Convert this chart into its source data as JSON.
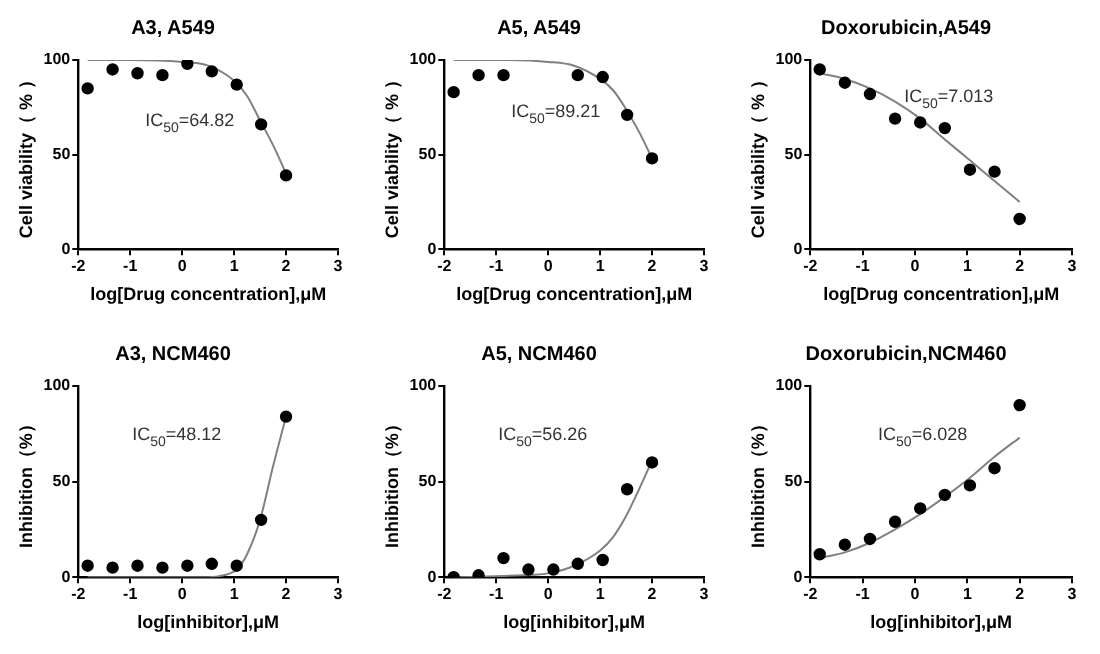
{
  "chart_data": [
    {
      "type": "scatter",
      "title": "A3, A549",
      "xlabel": "log[Drug concentration],μM",
      "ylabel": "Cell viability（ % ）",
      "annotations": [
        "IC$_{50}$=64.82"
      ],
      "xlim": [
        -2,
        3
      ],
      "xticks": [
        -2,
        -1,
        0,
        1,
        2,
        3
      ],
      "ylim": [
        0,
        100
      ],
      "yticks": [
        0,
        50,
        100
      ],
      "grid": false,
      "legend": false,
      "series": [
        {
          "type": "scatter",
          "marker": "circle",
          "color": "#000000",
          "x": [
            -1.82,
            -1.34,
            -0.86,
            -0.38,
            0.1,
            0.57,
            1.05,
            1.52,
            2
          ],
          "values": [
            85,
            95,
            93,
            92,
            98,
            94,
            87,
            66,
            39
          ]
        },
        {
          "type": "line",
          "marker": "none",
          "color": "#808080",
          "x": [
            -1.82,
            -1,
            0,
            0.5,
            1,
            1.25,
            1.5,
            1.75,
            2
          ],
          "values": [
            100,
            100,
            99,
            97,
            89,
            81,
            68,
            55,
            40
          ]
        }
      ]
    },
    {
      "type": "scatter",
      "title": "A5, A549",
      "xlabel": "log[Drug concentration],μM",
      "ylabel": "Cell viability（ % ）",
      "annotations": [
        "IC$_{50}$=89.21"
      ],
      "xlim": [
        -2,
        3
      ],
      "xticks": [
        -2,
        -1,
        0,
        1,
        2,
        3
      ],
      "ylim": [
        0,
        100
      ],
      "yticks": [
        0,
        50,
        100
      ],
      "grid": false,
      "legend": false,
      "series": [
        {
          "type": "scatter",
          "marker": "circle",
          "color": "#000000",
          "x": [
            -1.82,
            -1.34,
            -0.86,
            0.57,
            1.05,
            1.52,
            2
          ],
          "values": [
            83,
            92,
            92,
            92,
            91,
            71,
            48
          ]
        },
        {
          "type": "line",
          "marker": "none",
          "color": "#808080",
          "x": [
            -1.82,
            -1,
            0,
            0.5,
            1,
            1.25,
            1.5,
            1.75,
            2
          ],
          "values": [
            100,
            100,
            99,
            97,
            90,
            84,
            74,
            62,
            48
          ]
        }
      ]
    },
    {
      "type": "scatter",
      "title": "Doxorubicin,A549",
      "xlabel": "log[Drug concentration],μM",
      "ylabel": "Cell viability（ % ）",
      "annotations": [
        "IC$_{50}$=7.013"
      ],
      "xlim": [
        -2,
        3
      ],
      "xticks": [
        -2,
        -1,
        0,
        1,
        2,
        3
      ],
      "ylim": [
        0,
        100
      ],
      "yticks": [
        0,
        50,
        100
      ],
      "grid": false,
      "legend": false,
      "series": [
        {
          "type": "scatter",
          "marker": "circle",
          "color": "#000000",
          "x": [
            -1.82,
            -1.34,
            -0.86,
            -0.38,
            0.1,
            0.57,
            1.05,
            1.52,
            2
          ],
          "values": [
            95,
            88,
            82,
            69,
            67,
            64,
            42,
            41,
            16
          ]
        },
        {
          "type": "line",
          "marker": "none",
          "color": "#808080",
          "x": [
            -1.82,
            -1.34,
            -0.86,
            -0.38,
            0.1,
            0.57,
            1.05,
            1.52,
            2
          ],
          "values": [
            93,
            90,
            85,
            78,
            69,
            58,
            47,
            36,
            25
          ]
        }
      ]
    },
    {
      "type": "scatter",
      "title": "A3, NCM460",
      "xlabel": "log[inhibitor],μM",
      "ylabel": "Inhibition（%）",
      "annotations": [
        "IC$_{50}$=48.12"
      ],
      "xlim": [
        -2,
        3
      ],
      "xticks": [
        -2,
        -1,
        0,
        1,
        2,
        3
      ],
      "ylim": [
        0,
        100
      ],
      "yticks": [
        0,
        50,
        100
      ],
      "grid": false,
      "legend": false,
      "series": [
        {
          "type": "scatter",
          "marker": "circle",
          "color": "#000000",
          "x": [
            -1.82,
            -1.34,
            -0.86,
            -0.38,
            0.1,
            0.57,
            1.05,
            1.52,
            2
          ],
          "values": [
            6,
            5,
            6,
            5,
            6,
            7,
            6,
            30,
            84
          ]
        },
        {
          "type": "line",
          "marker": "none",
          "color": "#808080",
          "x": [
            -1.82,
            0,
            0.5,
            0.8,
            1.05,
            1.25,
            1.5,
            1.75,
            2
          ],
          "values": [
            0,
            0,
            0,
            1,
            4,
            12,
            30,
            58,
            84
          ]
        }
      ]
    },
    {
      "type": "scatter",
      "title": "A5, NCM460",
      "xlabel": "log[inhibitor],μM",
      "ylabel": "Inhibition（%）",
      "annotations": [
        "IC$_{50}$=56.26"
      ],
      "xlim": [
        -2,
        3
      ],
      "xticks": [
        -2,
        -1,
        0,
        1,
        2,
        3
      ],
      "ylim": [
        0,
        100
      ],
      "yticks": [
        0,
        50,
        100
      ],
      "grid": false,
      "legend": false,
      "series": [
        {
          "type": "scatter",
          "marker": "circle",
          "color": "#000000",
          "x": [
            -1.82,
            -1.34,
            -0.86,
            -0.38,
            0.1,
            0.57,
            1.05,
            1.52,
            2
          ],
          "values": [
            0,
            1,
            10,
            4,
            4,
            7,
            9,
            46,
            60
          ]
        },
        {
          "type": "line",
          "marker": "none",
          "color": "#808080",
          "x": [
            -1.82,
            -0.5,
            0,
            0.5,
            1,
            1.25,
            1.5,
            1.75,
            2
          ],
          "values": [
            0,
            1,
            2,
            6,
            14,
            21,
            32,
            46,
            61
          ]
        }
      ]
    },
    {
      "type": "scatter",
      "title": "Doxorubicin,NCM460",
      "xlabel": "log[inhibitor],μM",
      "ylabel": "Inhibition（%）",
      "annotations": [
        "IC$_{50}$=6.028"
      ],
      "xlim": [
        -2,
        3
      ],
      "xticks": [
        -2,
        -1,
        0,
        1,
        2,
        3
      ],
      "ylim": [
        0,
        100
      ],
      "yticks": [
        0,
        50,
        100
      ],
      "grid": false,
      "legend": false,
      "series": [
        {
          "type": "scatter",
          "marker": "circle",
          "color": "#000000",
          "x": [
            -1.82,
            -1.34,
            -0.86,
            -0.38,
            0.1,
            0.57,
            1.05,
            1.52,
            2
          ],
          "values": [
            12,
            17,
            20,
            29,
            36,
            43,
            48,
            57,
            90
          ]
        },
        {
          "type": "line",
          "marker": "none",
          "color": "#808080",
          "x": [
            -1.82,
            -1.34,
            -0.86,
            -0.38,
            0.1,
            0.57,
            1.05,
            1.52,
            2
          ],
          "values": [
            10,
            13,
            18,
            25,
            33,
            42,
            52,
            63,
            73
          ]
        }
      ]
    }
  ]
}
